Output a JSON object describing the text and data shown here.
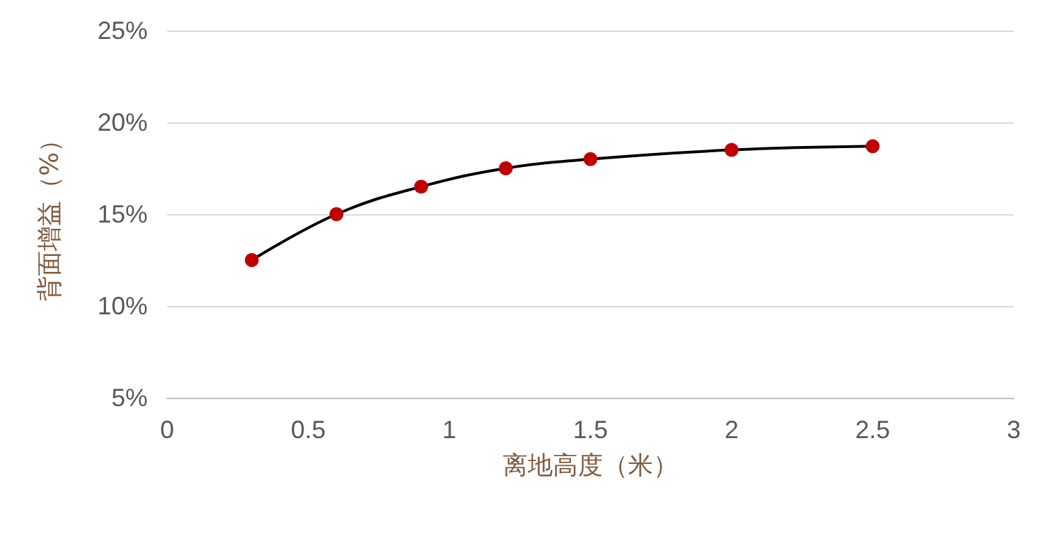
{
  "chart_data": {
    "type": "line",
    "xlabel": "离地高度（米）",
    "ylabel": "背面增益（%）",
    "xlim": [
      0,
      3
    ],
    "xticks": [
      0,
      0.5,
      1,
      1.5,
      2,
      2.5,
      3
    ],
    "ylim": [
      5,
      25
    ],
    "yticks": [
      {
        "value": 5,
        "label": "5%"
      },
      {
        "value": 10,
        "label": "10%"
      },
      {
        "value": 15,
        "label": "15%"
      },
      {
        "value": 20,
        "label": "20%"
      },
      {
        "value": 25,
        "label": "25%"
      }
    ],
    "series": [
      {
        "color": "#000000",
        "colors": [
          "#c00000",
          "#c00000",
          "#c00000",
          "#c00000",
          "#c00000",
          "#c00000",
          "#c00000"
        ],
        "x": [
          0.3,
          0.6,
          0.9,
          1.2,
          1.5,
          2,
          2.5
        ],
        "values": [
          12.5,
          15,
          16.5,
          17.5,
          18,
          18.5,
          18.7
        ]
      }
    ],
    "grid": "y",
    "marker": "circle",
    "line_style": "solid"
  }
}
